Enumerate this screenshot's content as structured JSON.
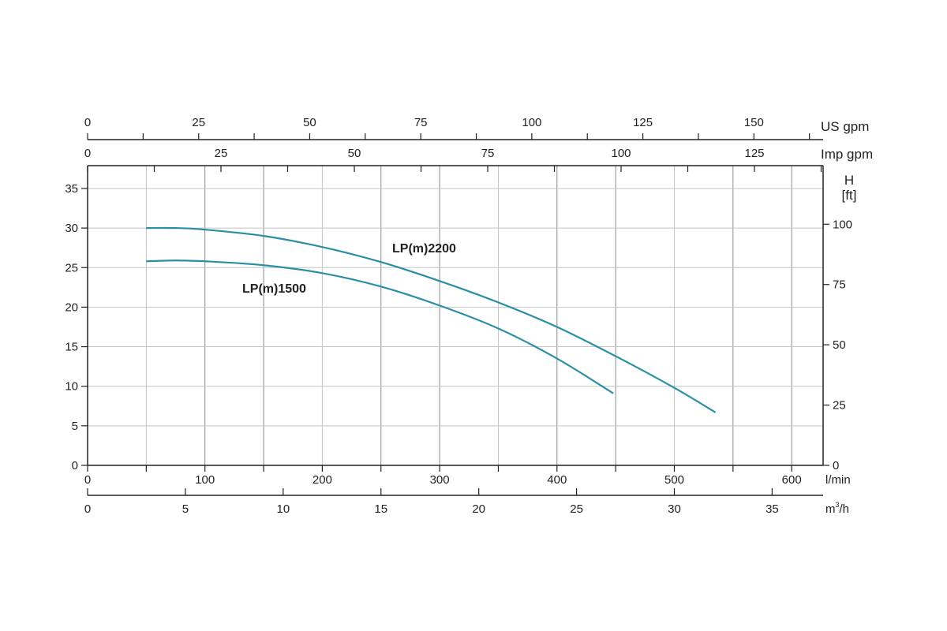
{
  "chart_data": {
    "type": "line",
    "title": "",
    "x": {
      "label": "l/min",
      "range": [
        0,
        625
      ],
      "ticks": [
        0,
        100,
        200,
        300,
        400,
        500,
        600
      ]
    },
    "y": {
      "label": "",
      "range": [
        0,
        37
      ],
      "ticks": [
        0,
        5,
        10,
        15,
        20,
        25,
        30,
        35
      ]
    },
    "secondary_axes": {
      "us_gpm": {
        "label": "US gpm",
        "ticks": [
          0,
          25,
          50,
          75,
          100,
          125,
          150
        ]
      },
      "imp_gpm": {
        "label": "Imp gpm",
        "ticks": [
          0,
          25,
          50,
          75,
          100,
          125
        ]
      },
      "m3h": {
        "label": "m³/h",
        "label_main": "m",
        "label_sup": "3",
        "label_rest": "/h",
        "ticks": [
          0,
          5,
          10,
          15,
          20,
          25,
          30,
          35
        ]
      },
      "head_ft": {
        "label_top": "H",
        "label_unit": "[ft]",
        "ticks": [
          0,
          25,
          50,
          75,
          100
        ]
      }
    },
    "grid": true,
    "series": [
      {
        "name": "LP(m)2200",
        "color": "#2b8fa3",
        "points": [
          [
            50,
            30.0
          ],
          [
            75,
            30.0
          ],
          [
            100,
            29.8
          ],
          [
            150,
            29.0
          ],
          [
            200,
            27.6
          ],
          [
            250,
            25.7
          ],
          [
            300,
            23.3
          ],
          [
            350,
            20.6
          ],
          [
            400,
            17.5
          ],
          [
            450,
            13.8
          ],
          [
            500,
            9.8
          ],
          [
            535,
            6.7
          ]
        ]
      },
      {
        "name": "LP(m)1500",
        "color": "#2b8fa3",
        "points": [
          [
            50,
            25.8
          ],
          [
            75,
            25.9
          ],
          [
            100,
            25.8
          ],
          [
            150,
            25.3
          ],
          [
            200,
            24.3
          ],
          [
            250,
            22.6
          ],
          [
            300,
            20.2
          ],
          [
            350,
            17.3
          ],
          [
            400,
            13.5
          ],
          [
            448,
            9.1
          ]
        ]
      }
    ]
  }
}
